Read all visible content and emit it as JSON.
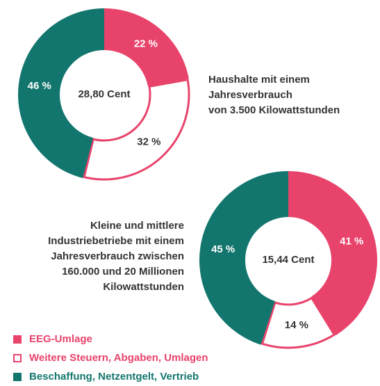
{
  "chart_data": [
    {
      "type": "pie",
      "description": [
        "Haushalte mit einem",
        "Jahresverbrauch",
        "von 3.500 Kilowattstunden"
      ],
      "center_label": "28,80 Cent",
      "categories": [
        "EEG-Umlage",
        "Weitere Steuern, Abgaben, Umlagen",
        "Beschaffung, Netzentgelt, Vertrieb"
      ],
      "values": [
        22,
        32,
        46
      ],
      "value_labels": [
        "22 %",
        "32 %",
        "46 %"
      ],
      "colors": [
        "#e8436b",
        "#ffffff",
        "#13766e"
      ],
      "outline_color": "#e8436b"
    },
    {
      "type": "pie",
      "description": [
        "Kleine und mittlere",
        "Industriebetriebe mit einem",
        "Jahresverbrauch zwischen",
        "160.000 und 20 Millionen",
        "Kilowattstunden"
      ],
      "center_label": "15,44 Cent",
      "categories": [
        "EEG-Umlage",
        "Weitere Steuern, Abgaben, Umlagen",
        "Beschaffung, Netzentgelt, Vertrieb"
      ],
      "values": [
        41,
        14,
        45
      ],
      "value_labels": [
        "41 %",
        "14 %",
        "45 %"
      ],
      "colors": [
        "#e8436b",
        "#ffffff",
        "#13766e"
      ],
      "outline_color": "#e8436b"
    }
  ]
}
